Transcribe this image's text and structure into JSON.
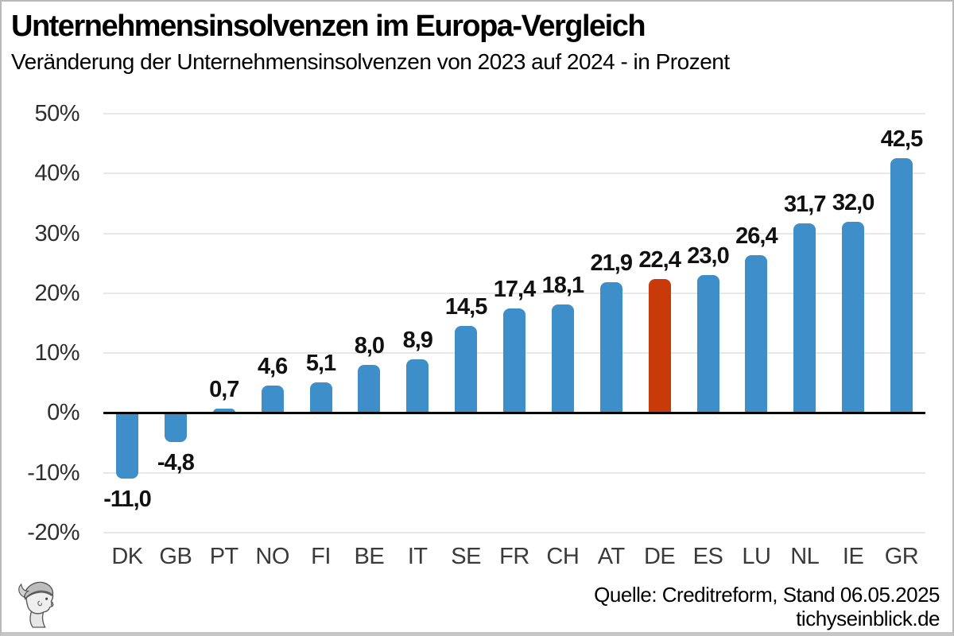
{
  "header": {
    "title": "Unternehmensinsolvenzen im Europa-Vergleich",
    "subtitle": "Veränderung der Unternehmensinsolvenzen von 2023 auf 2024 - in Prozent"
  },
  "chart_data": {
    "type": "bar",
    "title": "Unternehmensinsolvenzen im Europa-Vergleich",
    "subtitle": "Veränderung der Unternehmensinsolvenzen von 2023 auf 2024 - in Prozent",
    "categories": [
      "DK",
      "GB",
      "PT",
      "NO",
      "FI",
      "BE",
      "IT",
      "SE",
      "FR",
      "CH",
      "AT",
      "DE",
      "ES",
      "LU",
      "NL",
      "IE",
      "GR"
    ],
    "values": [
      -11.0,
      -4.8,
      0.7,
      4.6,
      5.1,
      8.0,
      8.9,
      14.5,
      17.4,
      18.1,
      21.9,
      22.4,
      23.0,
      26.4,
      31.7,
      32.0,
      42.5
    ],
    "value_labels": [
      "-11,0",
      "-4,8",
      "0,7",
      "4,6",
      "5,1",
      "8,0",
      "8,9",
      "14,5",
      "17,4",
      "18,1",
      "21,9",
      "22,4",
      "23,0",
      "26,4",
      "31,7",
      "32,0",
      "42,5"
    ],
    "highlight_category": "DE",
    "highlight_index": 11,
    "bar_color": "#3e8ec9",
    "highlight_color": "#c93a0a",
    "ylim": [
      -20,
      50
    ],
    "yticks": [
      50,
      40,
      30,
      20,
      10,
      0,
      -10,
      -20
    ],
    "ytick_labels": [
      "50%",
      "40%",
      "30%",
      "20%",
      "10%",
      "0%",
      "-10%",
      "-20%"
    ],
    "grid": true,
    "legend": "none",
    "xlabel": "",
    "ylabel": ""
  },
  "footer": {
    "source": "Quelle: Creditreform, Stand 06.05.2025",
    "site": "tichyseinblick.de",
    "logo": "hermes-head-logo"
  }
}
